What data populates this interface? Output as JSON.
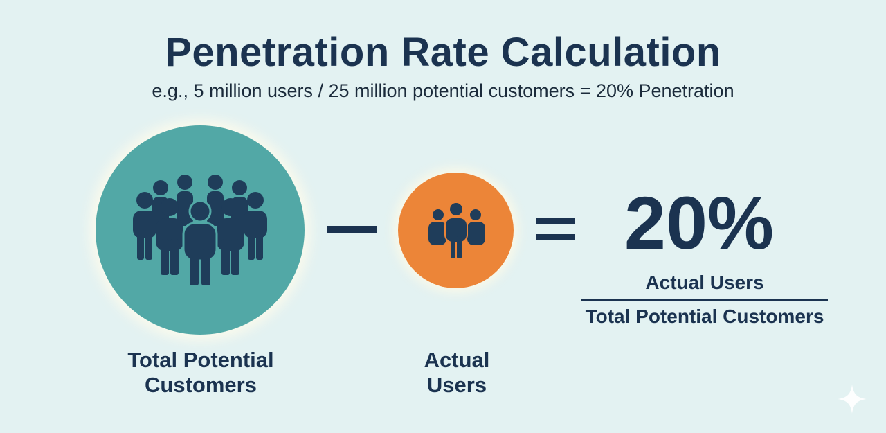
{
  "header": {
    "title": "Penetration Rate Calculation",
    "subtitle": "e.g., 5 million users / 25 million potential customers = 20% Penetration"
  },
  "operands": {
    "total": {
      "label_line1": "Total Potential",
      "label_line2": "Customers",
      "icon": "crowd-icon",
      "color": "#52a8a6"
    },
    "actual": {
      "label_line1": "Actual",
      "label_line2": "Users",
      "icon": "small-group-icon",
      "color": "#ec8538"
    },
    "operator": "minus-icon",
    "equals": "equals-icon"
  },
  "result": {
    "value": "20%",
    "numerator": "Actual Users",
    "denominator": "Total Potential Customers"
  },
  "colors": {
    "background": "#e3f2f2",
    "primary_text": "#1b3350",
    "teal": "#52a8a6",
    "orange": "#ec8538"
  },
  "decoration": {
    "corner_icon": "sparkle-icon"
  }
}
